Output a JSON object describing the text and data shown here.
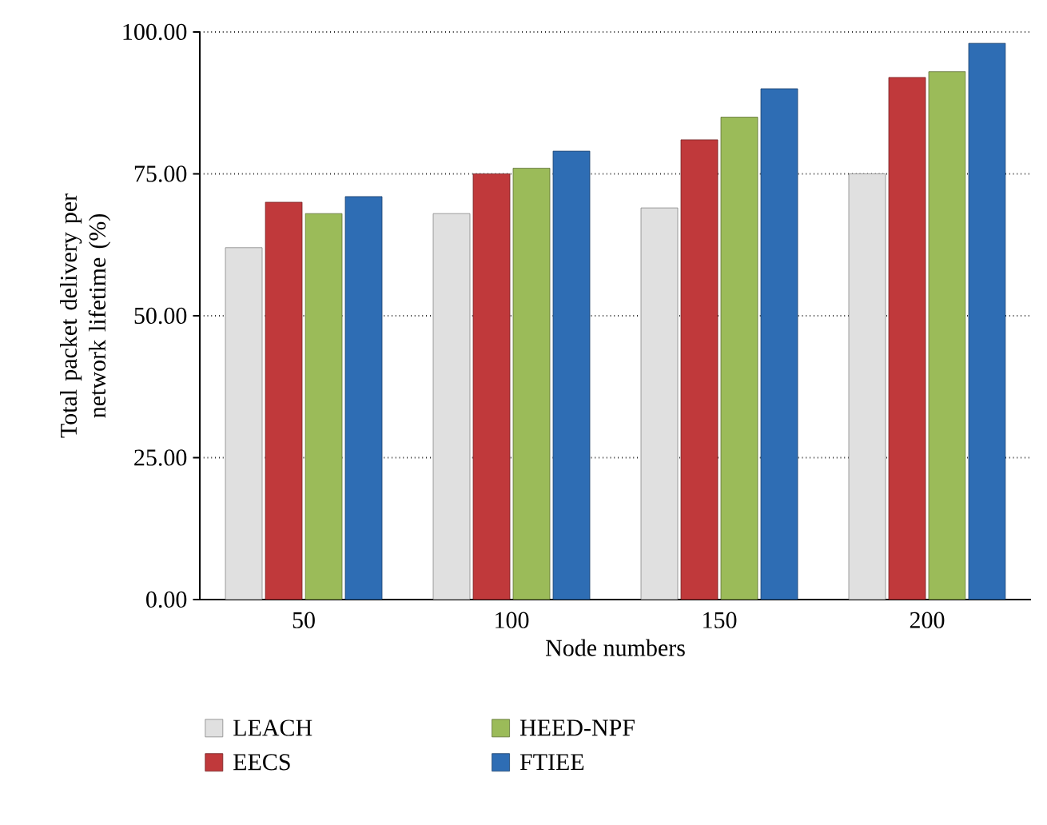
{
  "chart_data": {
    "type": "bar",
    "xlabel": "Node numbers",
    "ylabel": "Total packet delivery per network lifetime (%)",
    "categories": [
      "50",
      "100",
      "150",
      "200"
    ],
    "series": [
      {
        "name": "LEACH",
        "color": "#e0e0e0",
        "values": [
          62,
          68,
          69,
          75
        ]
      },
      {
        "name": "EECS",
        "color": "#c0393b",
        "values": [
          70,
          75,
          81,
          92
        ]
      },
      {
        "name": "HEED-NPF",
        "color": "#9bbb59",
        "values": [
          68,
          76,
          85,
          93
        ]
      },
      {
        "name": "FTIEE",
        "color": "#2e6db4",
        "values": [
          71,
          79,
          90,
          98
        ]
      }
    ],
    "ylim": [
      0,
      100
    ],
    "yticks": [
      {
        "value": 0,
        "label": "0.00"
      },
      {
        "value": 25,
        "label": "25.00"
      },
      {
        "value": 50,
        "label": "50.00"
      },
      {
        "value": 75,
        "label": "75.00"
      },
      {
        "value": 100,
        "label": "100.00"
      }
    ],
    "grid": "y",
    "legend": "bottom"
  }
}
